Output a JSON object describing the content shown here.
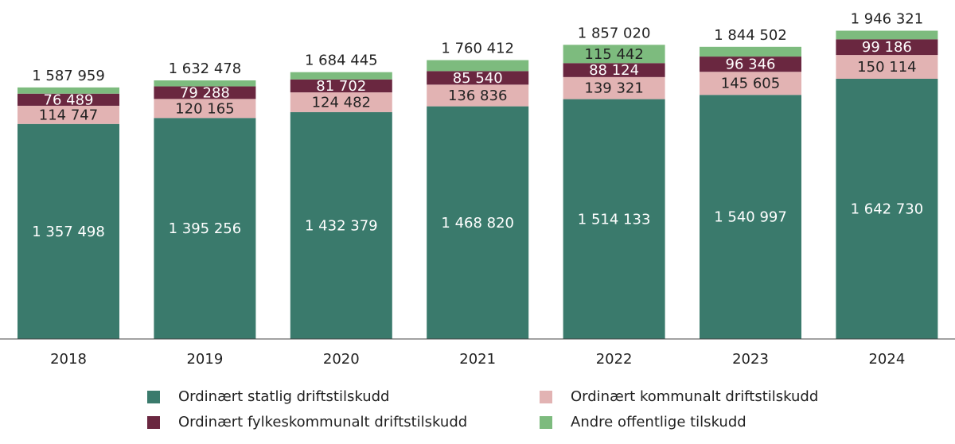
{
  "chart_data": {
    "type": "stacked-bar",
    "categories": [
      "2018",
      "2019",
      "2020",
      "2021",
      "2022",
      "2023",
      "2024"
    ],
    "series": [
      {
        "name": "Ordinært statlig driftstilskudd",
        "color": "#3a7a6c",
        "values": [
          1357498,
          1395256,
          1432379,
          1468820,
          1514133,
          1540997,
          1642730
        ],
        "labels": [
          "1 357 498",
          "1 395 256",
          "1 432 379",
          "1 468 820",
          "1 514 133",
          "1 540 997",
          "1 642 730"
        ]
      },
      {
        "name": "Ordinært kommunalt driftstilskudd",
        "color": "#e2b3b3",
        "values": [
          114747,
          120165,
          124482,
          136836,
          139321,
          145605,
          150114
        ],
        "labels": [
          "114 747",
          "120 165",
          "124 482",
          "136 836",
          "139 321",
          "145 605",
          "150 114"
        ]
      },
      {
        "name": "Ordinært fylkeskommunalt driftstilskudd",
        "color": "#6a2740",
        "values": [
          76489,
          79288,
          81702,
          85540,
          88124,
          96346,
          99186
        ],
        "labels": [
          "76 489",
          "79 288",
          "81 702",
          "85 540",
          "88 124",
          "96 346",
          "99 186"
        ]
      },
      {
        "name": "Andre offentlige tilskudd",
        "color": "#7dbb7e",
        "values": [
          39225,
          37769,
          45882,
          69216,
          115442,
          61554,
          54291
        ],
        "labels": [
          null,
          null,
          null,
          null,
          "115 442",
          null,
          null
        ]
      }
    ],
    "totals": [
      1587959,
      1632478,
      1684445,
      1760412,
      1857020,
      1844502,
      1946321
    ],
    "total_labels": [
      "1 587 959",
      "1 632 478",
      "1 684 445",
      "1 760 412",
      "1 857 020",
      "1 844 502",
      "1 946 321"
    ],
    "ylim": [
      0,
      2140000
    ],
    "grid": false,
    "legend_placement": "bottom"
  }
}
